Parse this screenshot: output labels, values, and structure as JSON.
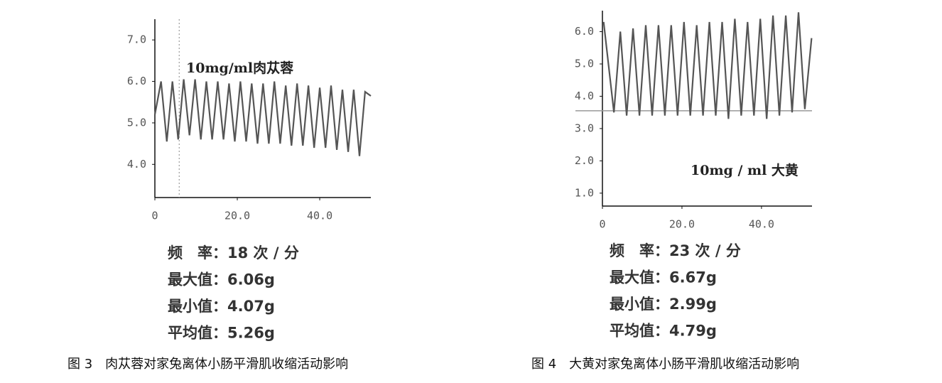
{
  "chart_data": [
    {
      "type": "line",
      "annotation": "10mg/ml肉苁蓉",
      "color": "#555555",
      "marker_x": 5.9,
      "xlim": [
        0,
        52.4
      ],
      "ylim": [
        3.2,
        7.5
      ],
      "xticks": [
        0,
        {
          "value": 20,
          "label": "20.0"
        },
        {
          "value": 40,
          "label": "40.0"
        }
      ],
      "yticks": [
        {
          "value": 4,
          "label": "4.0"
        },
        {
          "value": 5,
          "label": "5.0"
        },
        {
          "value": 6,
          "label": "6.0"
        },
        {
          "value": 7,
          "label": "7.0"
        }
      ],
      "x": [
        0,
        1.5,
        2.9,
        4.25,
        5.65,
        7.0,
        8.4,
        9.75,
        11.15,
        12.5,
        13.9,
        15.25,
        16.65,
        18.0,
        19.4,
        20.75,
        22.15,
        23.5,
        24.9,
        26.25,
        27.65,
        29.0,
        30.4,
        31.75,
        33.15,
        34.5,
        35.9,
        37.25,
        38.65,
        40.0,
        41.4,
        42.75,
        44.15,
        45.5,
        46.9,
        48.25,
        49.65,
        51.0,
        52.4
      ],
      "values": [
        5.2,
        6.0,
        4.55,
        6.0,
        4.6,
        6.05,
        4.7,
        6.05,
        4.6,
        6.0,
        4.6,
        6.0,
        4.6,
        5.95,
        4.55,
        6.0,
        4.55,
        5.95,
        4.5,
        5.95,
        4.5,
        6.0,
        4.5,
        5.9,
        4.45,
        5.95,
        4.45,
        5.9,
        4.4,
        5.85,
        4.4,
        5.9,
        4.35,
        5.8,
        4.3,
        5.8,
        4.2,
        5.75,
        5.65
      ]
    },
    {
      "type": "line",
      "annotation": "10mg / ml 大黄",
      "color": "#555555",
      "baseline_y": 3.55,
      "xlim": [
        0,
        52.7
      ],
      "ylim": [
        0.6,
        6.65
      ],
      "xticks": [
        0,
        {
          "value": 20,
          "label": "20.0"
        },
        {
          "value": 40,
          "label": "40.0"
        }
      ],
      "yticks": [
        {
          "value": 1,
          "label": "1.0"
        },
        {
          "value": 2,
          "label": "2.0"
        },
        {
          "value": 3,
          "label": "3.0"
        },
        {
          "value": 4,
          "label": "4.0"
        },
        {
          "value": 5,
          "label": "5.0"
        },
        {
          "value": 6,
          "label": "6.0"
        }
      ],
      "x": [
        0.3,
        2.9,
        4.5,
        6.1,
        7.7,
        9.3,
        10.9,
        12.5,
        14.1,
        15.7,
        17.3,
        18.9,
        20.5,
        22.1,
        23.7,
        25.3,
        26.9,
        28.5,
        30.1,
        31.7,
        33.3,
        34.9,
        36.5,
        38.1,
        39.7,
        41.3,
        42.9,
        44.5,
        46.1,
        47.7,
        49.3,
        50.9,
        52.6
      ],
      "values": [
        6.3,
        3.5,
        6.0,
        3.4,
        6.1,
        3.4,
        6.2,
        3.4,
        6.2,
        3.4,
        6.2,
        3.4,
        6.3,
        3.4,
        6.2,
        3.4,
        6.3,
        3.4,
        6.3,
        3.3,
        6.4,
        3.4,
        6.3,
        3.4,
        6.4,
        3.3,
        6.5,
        3.4,
        6.5,
        3.5,
        6.6,
        3.6,
        5.8
      ]
    }
  ],
  "stats": [
    [
      "频　率：18 次 / 分",
      "最大值：6.06g",
      "最小值：4.07g",
      "平均值：5.26g"
    ],
    [
      "频　率：23 次 / 分",
      "最大值：6.67g",
      "最小值：2.99g",
      "平均值：4.79g"
    ]
  ],
  "captions": [
    "图 3　肉苁蓉对家兔离体小肠平滑肌收缩活动影响",
    "图 4　大黄对家兔离体小肠平滑肌收缩活动影响"
  ]
}
